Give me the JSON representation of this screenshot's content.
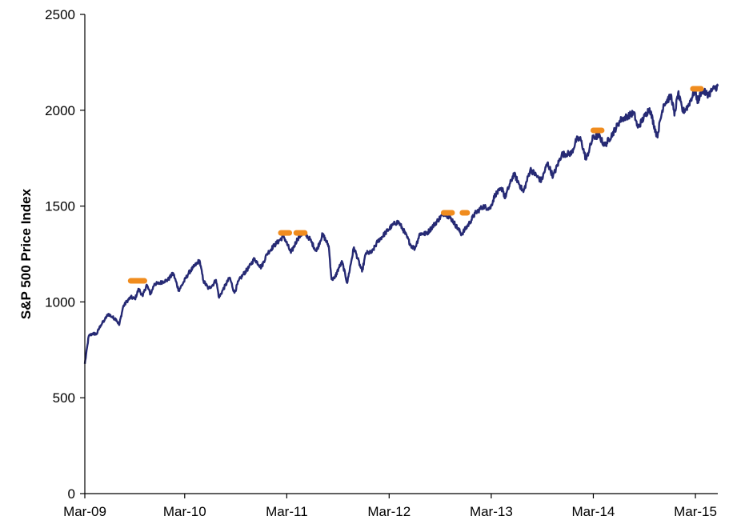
{
  "chart_data": {
    "type": "line",
    "title": "",
    "xlabel": "",
    "ylabel": "S&P 500 Price Index",
    "ylim": [
      0,
      2500
    ],
    "xlim": [
      "2009-03-09",
      "2015-05-20"
    ],
    "yticks": [
      0,
      500,
      1000,
      1500,
      2000,
      2500
    ],
    "xticks": [
      {
        "date": "2009-03-01",
        "label": "Mar-09"
      },
      {
        "date": "2010-03-01",
        "label": "Mar-10"
      },
      {
        "date": "2011-03-01",
        "label": "Mar-11"
      },
      {
        "date": "2012-03-01",
        "label": "Mar-12"
      },
      {
        "date": "2013-03-01",
        "label": "Mar-13"
      },
      {
        "date": "2014-03-01",
        "label": "Mar-14"
      },
      {
        "date": "2015-03-01",
        "label": "Mar-15"
      }
    ],
    "grid": false,
    "legend": "none",
    "series": [
      {
        "color": "#262a74",
        "points": [
          [
            "2009-03-09",
            677
          ],
          [
            "2009-03-23",
            822
          ],
          [
            "2009-04-06",
            835
          ],
          [
            "2009-04-20",
            832
          ],
          [
            "2009-05-04",
            877
          ],
          [
            "2009-05-18",
            904
          ],
          [
            "2009-06-01",
            938
          ],
          [
            "2009-06-15",
            920
          ],
          [
            "2009-06-29",
            910
          ],
          [
            "2009-07-10",
            880
          ],
          [
            "2009-07-24",
            975
          ],
          [
            "2009-08-07",
            1005
          ],
          [
            "2009-08-21",
            1025
          ],
          [
            "2009-09-04",
            1015
          ],
          [
            "2009-09-18",
            1068
          ],
          [
            "2009-10-02",
            1030
          ],
          [
            "2009-10-16",
            1090
          ],
          [
            "2009-10-30",
            1040
          ],
          [
            "2009-11-13",
            1095
          ],
          [
            "2009-11-27",
            1095
          ],
          [
            "2009-12-11",
            1105
          ],
          [
            "2009-12-31",
            1115
          ],
          [
            "2010-01-19",
            1150
          ],
          [
            "2010-02-08",
            1060
          ],
          [
            "2010-02-26",
            1105
          ],
          [
            "2010-03-15",
            1150
          ],
          [
            "2010-04-01",
            1180
          ],
          [
            "2010-04-23",
            1217
          ],
          [
            "2010-05-07",
            1110
          ],
          [
            "2010-05-25",
            1070
          ],
          [
            "2010-06-10",
            1090
          ],
          [
            "2010-06-21",
            1115
          ],
          [
            "2010-07-02",
            1022
          ],
          [
            "2010-07-16",
            1064
          ],
          [
            "2010-08-09",
            1127
          ],
          [
            "2010-08-26",
            1047
          ],
          [
            "2010-09-10",
            1110
          ],
          [
            "2010-09-27",
            1145
          ],
          [
            "2010-10-15",
            1177
          ],
          [
            "2010-11-05",
            1225
          ],
          [
            "2010-11-30",
            1180
          ],
          [
            "2010-12-20",
            1250
          ],
          [
            "2011-01-14",
            1293
          ],
          [
            "2011-02-18",
            1343
          ],
          [
            "2011-03-16",
            1256
          ],
          [
            "2011-04-08",
            1328
          ],
          [
            "2011-04-29",
            1363
          ],
          [
            "2011-05-20",
            1333
          ],
          [
            "2011-06-15",
            1265
          ],
          [
            "2011-07-07",
            1353
          ],
          [
            "2011-07-29",
            1292
          ],
          [
            "2011-08-08",
            1119
          ],
          [
            "2011-08-19",
            1123
          ],
          [
            "2011-09-02",
            1174
          ],
          [
            "2011-09-15",
            1209
          ],
          [
            "2011-10-03",
            1099
          ],
          [
            "2011-10-27",
            1285
          ],
          [
            "2011-11-25",
            1158
          ],
          [
            "2011-12-09",
            1255
          ],
          [
            "2011-12-30",
            1258
          ],
          [
            "2012-01-20",
            1315
          ],
          [
            "2012-02-17",
            1361
          ],
          [
            "2012-03-16",
            1404
          ],
          [
            "2012-04-02",
            1419
          ],
          [
            "2012-04-20",
            1378
          ],
          [
            "2012-05-18",
            1295
          ],
          [
            "2012-06-01",
            1278
          ],
          [
            "2012-06-19",
            1357
          ],
          [
            "2012-07-13",
            1356
          ],
          [
            "2012-08-10",
            1405
          ],
          [
            "2012-09-14",
            1465
          ],
          [
            "2012-10-12",
            1429
          ],
          [
            "2012-11-15",
            1353
          ],
          [
            "2012-12-14",
            1413
          ],
          [
            "2013-01-02",
            1462
          ],
          [
            "2013-01-31",
            1498
          ],
          [
            "2013-02-25",
            1487
          ],
          [
            "2013-03-15",
            1560
          ],
          [
            "2013-04-11",
            1593
          ],
          [
            "2013-04-18",
            1541
          ],
          [
            "2013-05-21",
            1669
          ],
          [
            "2013-06-24",
            1573
          ],
          [
            "2013-07-19",
            1692
          ],
          [
            "2013-08-27",
            1631
          ],
          [
            "2013-09-18",
            1725
          ],
          [
            "2013-10-08",
            1655
          ],
          [
            "2013-11-08",
            1770
          ],
          [
            "2013-12-13",
            1775
          ],
          [
            "2013-12-31",
            1848
          ],
          [
            "2014-01-15",
            1848
          ],
          [
            "2014-02-03",
            1742
          ],
          [
            "2014-02-28",
            1859
          ],
          [
            "2014-03-21",
            1866
          ],
          [
            "2014-04-11",
            1815
          ],
          [
            "2014-05-09",
            1878
          ],
          [
            "2014-06-06",
            1949
          ],
          [
            "2014-07-24",
            1987
          ],
          [
            "2014-08-07",
            1909
          ],
          [
            "2014-09-18",
            2011
          ],
          [
            "2014-10-15",
            1862
          ],
          [
            "2014-11-07",
            2031
          ],
          [
            "2014-12-05",
            2075
          ],
          [
            "2014-12-16",
            1972
          ],
          [
            "2014-12-29",
            2090
          ],
          [
            "2015-01-15",
            1992
          ],
          [
            "2015-02-02",
            2020
          ],
          [
            "2015-02-27",
            2104
          ],
          [
            "2015-03-10",
            2044
          ],
          [
            "2015-03-23",
            2104
          ],
          [
            "2015-04-17",
            2081
          ],
          [
            "2015-05-01",
            2108
          ],
          [
            "2015-05-20",
            2125
          ]
        ]
      }
    ],
    "markers": {
      "color": "#f08c1e",
      "segments": [
        {
          "start": "2009-08-20",
          "end": "2009-10-08",
          "value": 1110
        },
        {
          "start": "2011-02-08",
          "end": "2011-03-10",
          "value": 1360
        },
        {
          "start": "2011-04-04",
          "end": "2011-05-04",
          "value": 1360
        },
        {
          "start": "2012-09-12",
          "end": "2012-10-12",
          "value": 1465
        },
        {
          "start": "2012-11-18",
          "end": "2012-12-05",
          "value": 1465
        },
        {
          "start": "2014-03-01",
          "end": "2014-03-31",
          "value": 1895
        },
        {
          "start": "2015-02-20",
          "end": "2015-03-21",
          "value": 2112
        }
      ]
    }
  }
}
